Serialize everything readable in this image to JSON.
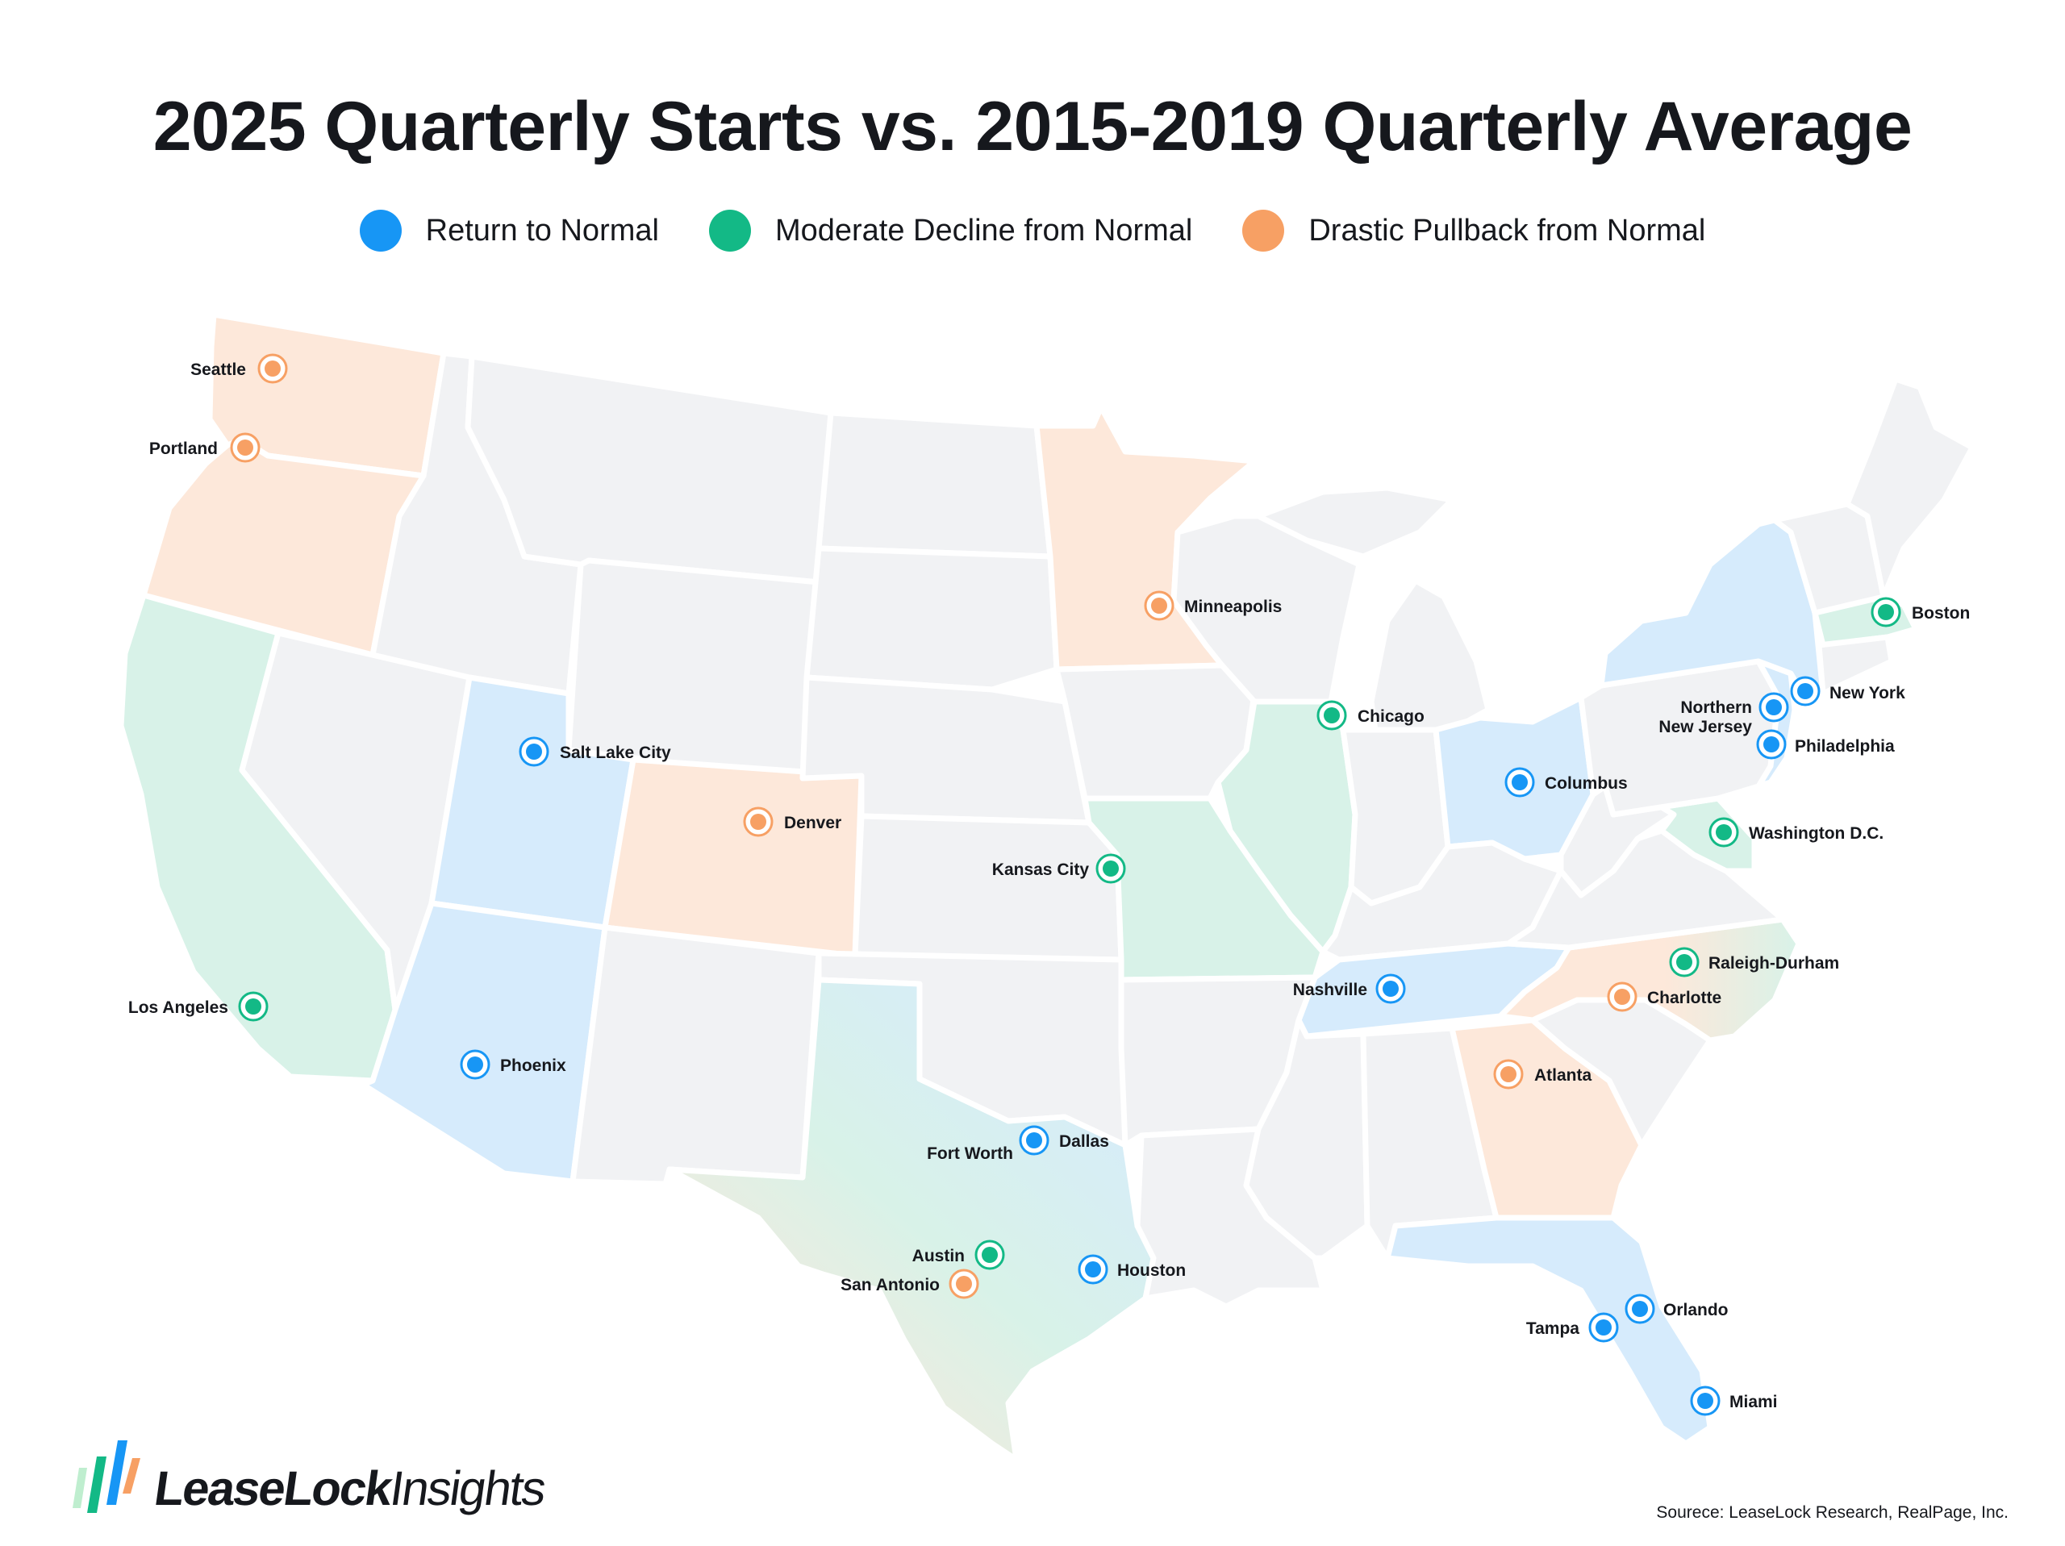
{
  "title": "2025 Quarterly Starts vs. 2015-2019 Quarterly Average",
  "colors": {
    "return_to_normal": "#1796f5",
    "moderate_decline": "#13b986",
    "drastic_pullback": "#f7a064",
    "state_blue": "#d6ebfc",
    "state_green": "#d8f2e8",
    "state_orange": "#fde8da",
    "state_gray": "#f1f2f4"
  },
  "legend": [
    {
      "label": "Return to Normal",
      "color": "#1796f5"
    },
    {
      "label": "Moderate Decline from Normal",
      "color": "#13b986"
    },
    {
      "label": "Drastic Pullback from Normal",
      "color": "#f7a064"
    }
  ],
  "cities": [
    {
      "name": "Seattle",
      "category": "drastic_pullback"
    },
    {
      "name": "Portland",
      "category": "drastic_pullback"
    },
    {
      "name": "Minneapolis",
      "category": "drastic_pullback"
    },
    {
      "name": "Boston",
      "category": "moderate_decline"
    },
    {
      "name": "New York",
      "category": "return_to_normal"
    },
    {
      "name": "Northern New Jersey",
      "category": "return_to_normal"
    },
    {
      "name": "Philadelphia",
      "category": "return_to_normal"
    },
    {
      "name": "Chicago",
      "category": "moderate_decline"
    },
    {
      "name": "Salt Lake City",
      "category": "return_to_normal"
    },
    {
      "name": "Columbus",
      "category": "return_to_normal"
    },
    {
      "name": "Denver",
      "category": "drastic_pullback"
    },
    {
      "name": "Washington D.C.",
      "category": "moderate_decline"
    },
    {
      "name": "Kansas City",
      "category": "moderate_decline"
    },
    {
      "name": "Raleigh-Durham",
      "category": "moderate_decline"
    },
    {
      "name": "Nashville",
      "category": "return_to_normal"
    },
    {
      "name": "Charlotte",
      "category": "drastic_pullback"
    },
    {
      "name": "Los Angeles",
      "category": "moderate_decline"
    },
    {
      "name": "Phoenix",
      "category": "return_to_normal"
    },
    {
      "name": "Atlanta",
      "category": "drastic_pullback"
    },
    {
      "name": "Dallas",
      "category": "return_to_normal"
    },
    {
      "name": "Fort Worth",
      "category": "return_to_normal"
    },
    {
      "name": "Austin",
      "category": "moderate_decline"
    },
    {
      "name": "Houston",
      "category": "return_to_normal"
    },
    {
      "name": "San Antonio",
      "category": "drastic_pullback"
    },
    {
      "name": "Orlando",
      "category": "return_to_normal"
    },
    {
      "name": "Tampa",
      "category": "return_to_normal"
    },
    {
      "name": "Miami",
      "category": "return_to_normal"
    }
  ],
  "logo": {
    "brand_bold": "LeaseLock",
    "brand_light": "Insights"
  },
  "source": "Sourece: LeaseLock Research, RealPage, Inc."
}
